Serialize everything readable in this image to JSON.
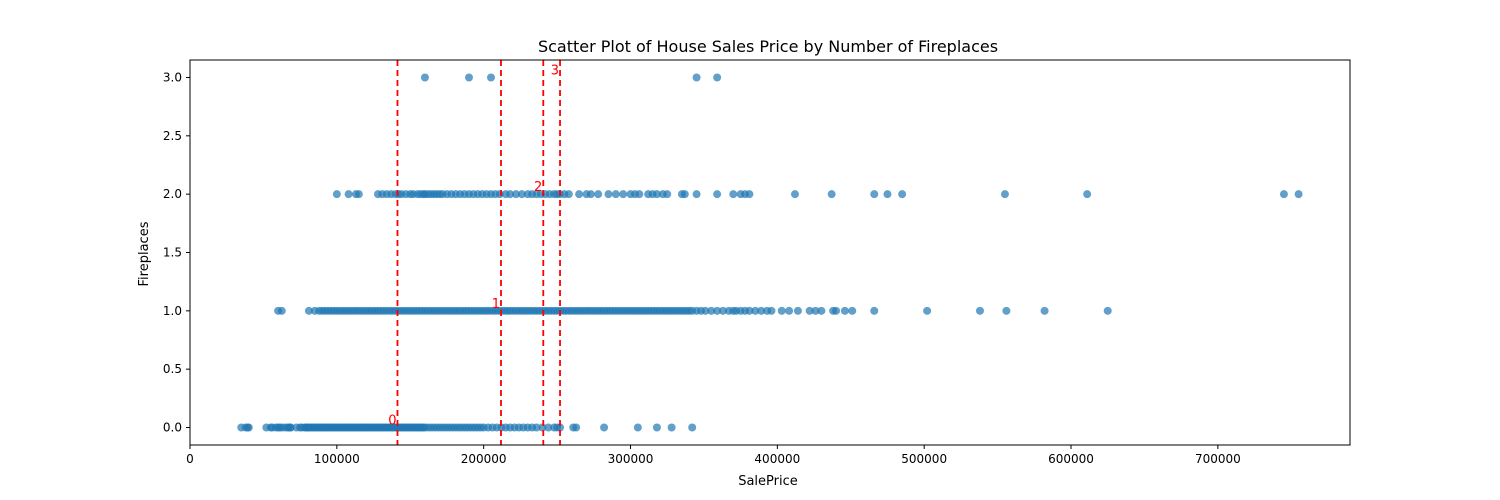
{
  "chart_data": {
    "type": "scatter",
    "title": "Scatter Plot of House Sales Price by Number of Fireplaces",
    "xlabel": "SalePrice",
    "ylabel": "Fireplaces",
    "xlim": [
      0,
      790000
    ],
    "ylim": [
      -0.15,
      3.15
    ],
    "xticks": [
      0,
      100000,
      200000,
      300000,
      400000,
      500000,
      600000,
      700000
    ],
    "yticks": [
      0.0,
      0.5,
      1.0,
      1.5,
      2.0,
      2.5,
      3.0
    ],
    "xtick_labels": [
      "0",
      "100000",
      "200000",
      "300000",
      "400000",
      "500000",
      "600000",
      "700000"
    ],
    "ytick_labels": [
      "0.0",
      "0.5",
      "1.0",
      "1.5",
      "2.0",
      "2.5",
      "3.0"
    ],
    "grid": false,
    "point_color": "#1f77b4",
    "point_alpha": 0.7,
    "line_color": "#ff0000",
    "mean_lines": [
      {
        "label": "0",
        "x": 141300,
        "label_y": 0.0
      },
      {
        "label": "1",
        "x": 211800,
        "label_y": 1.0
      },
      {
        "label": "2",
        "x": 240600,
        "label_y": 2.0
      },
      {
        "label": "3",
        "x": 252000,
        "label_y": 3.0
      }
    ],
    "series": [
      {
        "values": [
          {
            "y": 0,
            "x": [
              34900,
              37900,
              39300,
              40000,
              52000,
              55000,
              55993,
              58500,
              60000,
              61000,
              62383,
              64500,
              66500,
              67000,
              68400,
              68500,
              72500,
              75000,
              76000,
              78000,
              79000,
              79500,
              80000,
              81000,
              82000,
              83000,
              84000,
              85000,
              86000,
              87000,
              88000,
              89000,
              90000,
              91000,
              92000,
              93000,
              94000,
              95000,
              96000,
              97000,
              98000,
              99000,
              100000,
              101000,
              102000,
              103000,
              104000,
              105000,
              106000,
              107000,
              108000,
              109000,
              110000,
              111000,
              112000,
              113000,
              114000,
              115000,
              116000,
              117000,
              118000,
              119000,
              120000,
              121000,
              122000,
              123000,
              124000,
              125000,
              126000,
              127000,
              128000,
              129000,
              130000,
              131000,
              132000,
              133000,
              134000,
              135000,
              136000,
              137000,
              138000,
              139000,
              140000,
              141000,
              142000,
              143000,
              144000,
              145000,
              146000,
              147000,
              148000,
              149000,
              150000,
              151000,
              152000,
              153000,
              154000,
              155000,
              156000,
              157000,
              158000,
              159000,
              160000,
              162000,
              164000,
              166000,
              168000,
              170000,
              172000,
              174000,
              176000,
              178000,
              180000,
              182000,
              184000,
              186000,
              188000,
              190000,
              192000,
              194000,
              196000,
              198000,
              200000,
              203000,
              206000,
              209000,
              212000,
              215000,
              218000,
              221000,
              224000,
              227000,
              230000,
              233000,
              236000,
              240000,
              244000,
              248000,
              250000,
              252000,
              261000,
              263000,
              282000,
              305000,
              318000,
              328000,
              342000
            ]
          },
          {
            "y": 1,
            "x": [
              60000,
              62500,
              81000,
              85000,
              88000,
              90000,
              92000,
              94000,
              96000,
              98000,
              100000,
              102000,
              104000,
              106000,
              108000,
              110000,
              112000,
              114000,
              116000,
              118000,
              120000,
              122000,
              124000,
              126000,
              128000,
              130000,
              132000,
              134000,
              136000,
              138000,
              140000,
              142000,
              144000,
              146000,
              148000,
              150000,
              152000,
              154000,
              156000,
              158000,
              160000,
              162000,
              164000,
              166000,
              168000,
              170000,
              172000,
              174000,
              176000,
              178000,
              180000,
              182000,
              184000,
              186000,
              188000,
              190000,
              192000,
              194000,
              196000,
              198000,
              200000,
              202000,
              204000,
              206000,
              208000,
              210000,
              212000,
              214000,
              216000,
              218000,
              220000,
              222000,
              224000,
              226000,
              228000,
              230000,
              232000,
              234000,
              236000,
              238000,
              240000,
              242000,
              244000,
              246000,
              248000,
              250000,
              252000,
              254000,
              256000,
              258000,
              260000,
              262000,
              264000,
              266000,
              268000,
              270000,
              272000,
              274000,
              276000,
              278000,
              280000,
              282000,
              284000,
              286000,
              288000,
              290000,
              292000,
              294000,
              296000,
              298000,
              300000,
              302000,
              304000,
              306000,
              308000,
              310000,
              312000,
              314000,
              316000,
              318000,
              320000,
              322000,
              324000,
              326000,
              328000,
              330000,
              332000,
              334000,
              336000,
              338000,
              340000,
              342000,
              345000,
              348000,
              351000,
              355000,
              359000,
              363000,
              367000,
              370000,
              372000,
              375000,
              378000,
              381000,
              385000,
              389000,
              393000,
              396000,
              403000,
              408000,
              414000,
              422000,
              426000,
              430000,
              438000,
              440000,
              446000,
              451000,
              466000,
              502000,
              538000,
              556000,
              582000,
              625000
            ]
          },
          {
            "y": 2,
            "x": [
              100000,
              108000,
              113000,
              115000,
              128000,
              131000,
              134000,
              137000,
              140000,
              142000,
              144000,
              147000,
              150000,
              152000,
              155000,
              157000,
              159000,
              160000,
              162000,
              164000,
              166000,
              168000,
              170000,
              172000,
              175000,
              178000,
              181000,
              184000,
              187000,
              190000,
              193000,
              196000,
              199000,
              202000,
              205000,
              208000,
              211000,
              215000,
              218000,
              222000,
              226000,
              230000,
              233000,
              236000,
              239000,
              242000,
              245000,
              248000,
              250000,
              252000,
              255000,
              258000,
              265000,
              270000,
              273000,
              278000,
              285000,
              290000,
              295000,
              300000,
              303000,
              306000,
              312000,
              315000,
              318000,
              322000,
              325000,
              335000,
              337000,
              345000,
              359000,
              370000,
              375000,
              378000,
              381000,
              412000,
              437000,
              466000,
              475000,
              485000,
              555000,
              611000,
              745000,
              755000
            ]
          },
          {
            "y": 3,
            "x": [
              160000,
              190000,
              205000,
              345000,
              359000
            ]
          }
        ]
      }
    ]
  }
}
